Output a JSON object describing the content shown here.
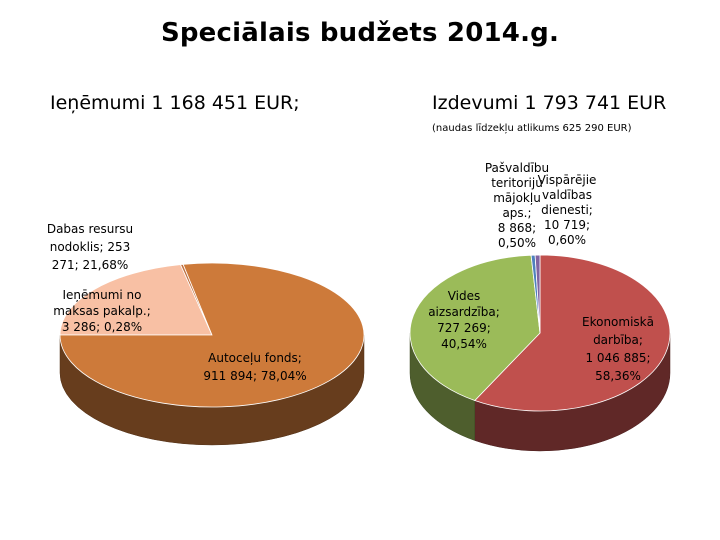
{
  "slide": {
    "title": "Speciālais budžets 2014.g.",
    "income_heading": "Ieņēmumi 1 168 451 EUR;",
    "expense_heading": "Izdevumi 1 793 741 EUR",
    "expense_note": "(naudas līdzekļu atlikums 625 290 EUR)"
  },
  "chart_data": [
    {
      "type": "pie",
      "title": "Ieņēmumi 1 168 451 EUR;",
      "slices": [
        {
          "label": "Dabas resursu nodoklis",
          "value": 253271,
          "percent": 21.68,
          "color": "#f8c0a4",
          "text_lines": [
            "Dabas resursu",
            "nodoklis; 253",
            "271; 21,68%"
          ]
        },
        {
          "label": "Ieņēmumi no maksas pakalp.",
          "value": 3286,
          "percent": 0.28,
          "color": "#c07040",
          "text_lines": [
            "Ieņēmumi no",
            "maksas pakalp.;",
            "3 286; 0,28%"
          ]
        },
        {
          "label": "Autoceļu fonds",
          "value": 911894,
          "percent": 78.04,
          "color": "#cd7a3a",
          "text_lines": [
            "Autoceļu fonds;",
            "911 894; 78,04%"
          ]
        }
      ]
    },
    {
      "type": "pie",
      "title": "Izdevumi 1 793 741 EUR",
      "slices": [
        {
          "label": "Ekonomiskā darbība",
          "value": 1046885,
          "percent": 58.36,
          "color": "#c0504d",
          "text_lines": [
            "Ekonomiskā",
            "darbība;",
            "1 046 885;",
            "58,36%"
          ]
        },
        {
          "label": "Vides aizsardzība",
          "value": 727269,
          "percent": 40.54,
          "color": "#9bbb59",
          "text_lines": [
            "Vides",
            "aizsardzība;",
            "727 269;",
            "40,54%"
          ]
        },
        {
          "label": "Pašvaldību teritoriju un mājokļu apsaimniekošana",
          "value": 8868,
          "percent": 0.5,
          "color": "#4f81bd",
          "text_lines": [
            "Pašvaldību",
            "teritoriju",
            "mājokļu",
            "aps.;",
            "8 868;",
            "0,50%"
          ]
        },
        {
          "label": "Vispārējie valdības dienesti",
          "value": 10719,
          "percent": 0.6,
          "color": "#8064a2",
          "text_lines": [
            "Vispārējie",
            "valdības",
            "dienesti;",
            "10 719;",
            "0,60%"
          ]
        }
      ]
    }
  ]
}
